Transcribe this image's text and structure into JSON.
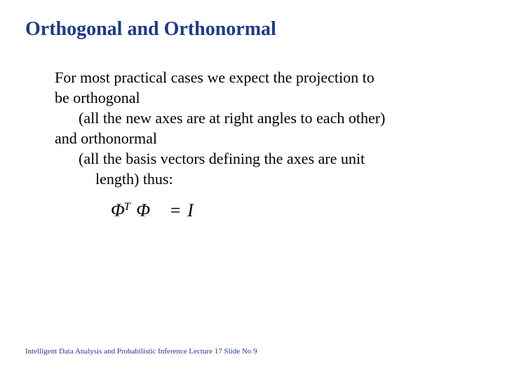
{
  "title": "Orthogonal and Orthonormal",
  "body": {
    "line1": "For most practical cases we expect the projection to",
    "line2": "be  orthogonal",
    "line3": "(all the new axes are at right angles to each other)",
    "line4": "and orthonormal",
    "line5": "(all the basis vectors defining the axes are unit",
    "line6": "length) thus:"
  },
  "equation": {
    "phi1": "Φ",
    "supT": "T",
    "phi2": "Φ",
    "eq": "=",
    "I": "I"
  },
  "footer": "Intelligent Data Analysis and Probabilistic Inference Lecture 17  Slide No  9",
  "colors": {
    "title_color": "#1e3a8a",
    "body_color": "#000000",
    "footer_color": "#1e3a8a",
    "background": "#ffffff"
  },
  "typography": {
    "title_fontsize": 28,
    "body_fontsize": 22,
    "equation_fontsize": 26,
    "footer_fontsize": 11,
    "font_family": "Times New Roman"
  }
}
